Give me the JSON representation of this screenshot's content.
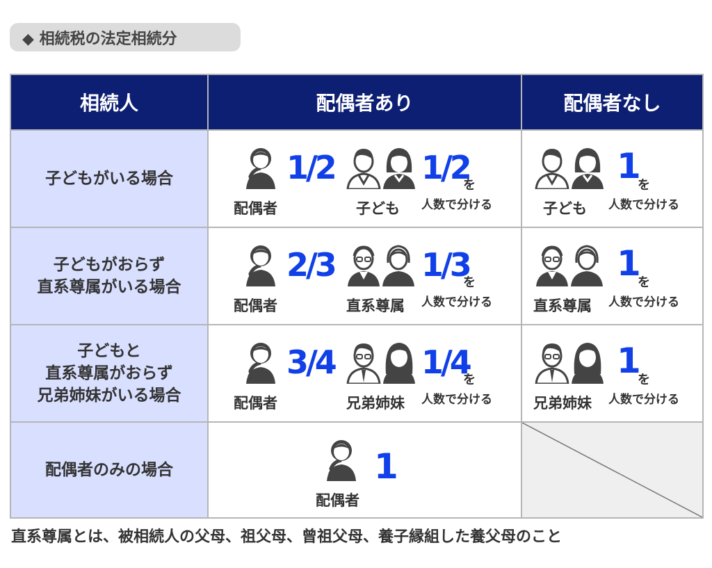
{
  "title_badge": "◆ 相続税の法定相続分",
  "headers": [
    "相続人",
    "配偶者あり",
    "配偶者なし"
  ],
  "rows": [
    {
      "case_lines": [
        "子どもがいる場合"
      ],
      "spouse": {
        "share": "1/2",
        "label": "配偶者"
      },
      "others": {
        "share": "1/2",
        "label": "子ども",
        "wo": "を",
        "split": "人数で分ける"
      },
      "nospouse": {
        "share": "1",
        "label": "子ども",
        "wo": "を",
        "split": "人数で分ける"
      }
    },
    {
      "case_lines": [
        "子どもがおらず",
        "直系尊属がいる場合"
      ],
      "spouse": {
        "share": "2/3",
        "label": "配偶者"
      },
      "others": {
        "share": "1/3",
        "label": "直系尊属",
        "wo": "を",
        "split": "人数で分ける"
      },
      "nospouse": {
        "share": "1",
        "label": "直系尊属",
        "wo": "を",
        "split": "人数で分ける"
      }
    },
    {
      "case_lines": [
        "子どもと",
        "直系尊属がおらず",
        "兄弟姉妹がいる場合"
      ],
      "spouse": {
        "share": "3/4",
        "label": "配偶者"
      },
      "others": {
        "share": "1/4",
        "label": "兄弟姉妹",
        "wo": "を",
        "split": "人数で分ける"
      },
      "nospouse": {
        "share": "1",
        "label": "兄弟姉妹",
        "wo": "を",
        "split": "人数で分ける"
      }
    },
    {
      "case_lines": [
        "配偶者のみの場合"
      ],
      "spouse": {
        "share": "1",
        "label": "配偶者"
      }
    }
  ],
  "footnote": "直系尊属とは、被相続人の父母、祖父母、曾祖父母、養子縁組した養父母のこと",
  "colors": {
    "header_bg": "#0d1f73",
    "row_head_bg": "#d9dfff",
    "accent": "#1140e8",
    "icon": "#444444"
  },
  "icons": [
    "woman-icon",
    "boy-icon",
    "girl-icon",
    "grandfather-icon",
    "grandmother-icon",
    "brother-icon",
    "sister-icon"
  ]
}
